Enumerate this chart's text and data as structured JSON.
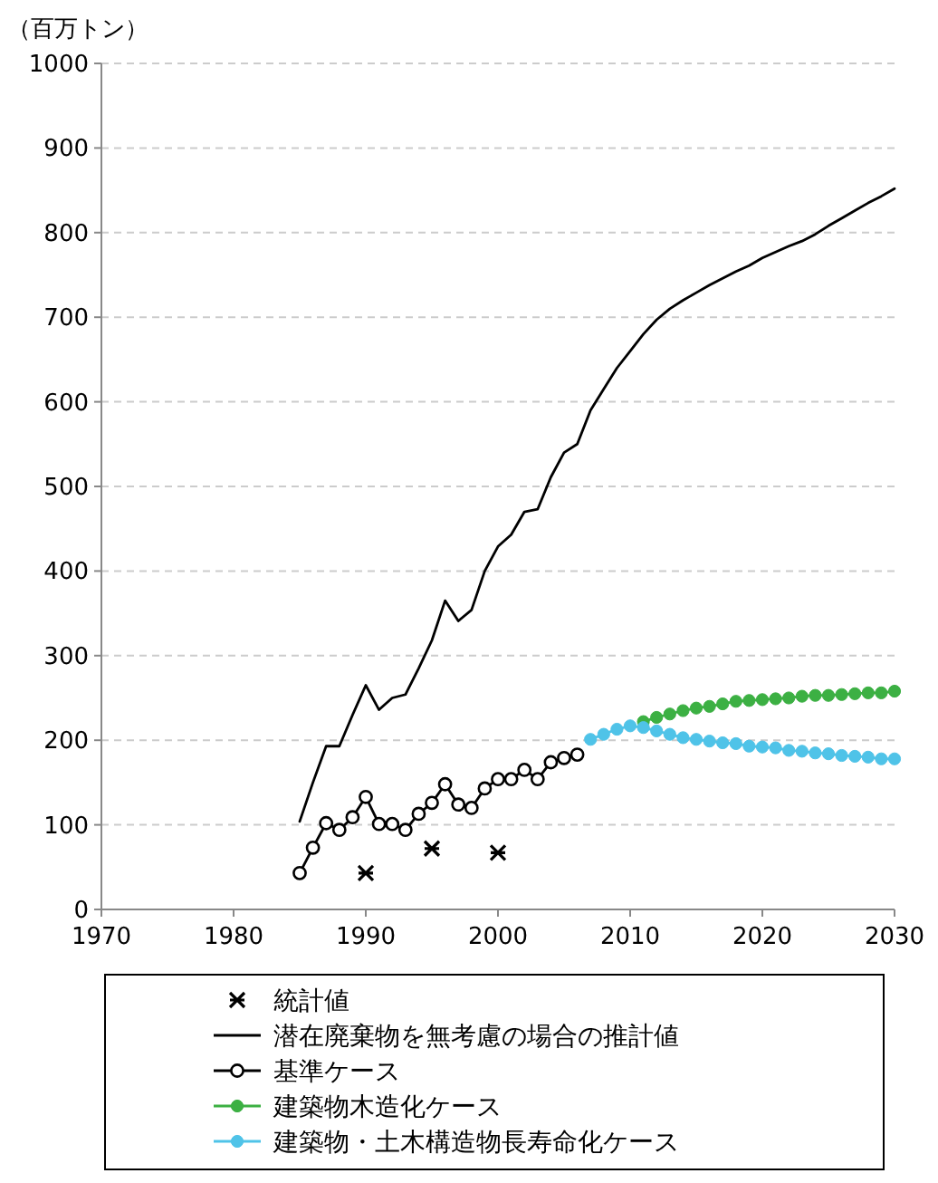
{
  "chart_data": {
    "type": "line",
    "ylabel": "（百万トン）",
    "xlim": [
      1970,
      2030
    ],
    "xticks": [
      1970,
      1980,
      1990,
      2000,
      2010,
      2020,
      2030
    ],
    "ylim": [
      0,
      1000
    ],
    "yticks": [
      0,
      100,
      200,
      300,
      400,
      500,
      600,
      700,
      800,
      900,
      1000
    ],
    "grid": "y",
    "legend": "bottom",
    "series": [
      {
        "name": "統計値",
        "type": "scatter",
        "marker": "cross",
        "color": "#000000",
        "x": [
          1990,
          1995,
          2000
        ],
        "values": [
          43,
          72,
          67
        ]
      },
      {
        "name": "潜在廃棄物を無考慮の場合の推計値",
        "marker": "none",
        "color": "#000000",
        "x": [
          1985,
          1986,
          1987,
          1988,
          1989,
          1990,
          1991,
          1992,
          1993,
          1994,
          1995,
          1996,
          1997,
          1998,
          1999,
          2000,
          2001,
          2002,
          2003,
          2004,
          2005,
          2006,
          2007,
          2008,
          2009,
          2010,
          2011,
          2012,
          2013,
          2014,
          2015,
          2016,
          2017,
          2018,
          2019,
          2020,
          2021,
          2022,
          2023,
          2024,
          2025,
          2026,
          2027,
          2028,
          2029,
          2030
        ],
        "values": [
          104,
          150,
          193,
          193,
          230,
          265,
          236,
          250,
          254,
          285,
          318,
          365,
          341,
          354,
          400,
          429,
          443,
          470,
          473,
          511,
          540,
          550,
          590,
          615,
          640,
          660,
          680,
          697,
          710,
          720,
          729,
          738,
          746,
          754,
          761,
          770,
          777,
          784,
          790,
          798,
          808,
          817,
          826,
          835,
          843,
          852
        ]
      },
      {
        "name": "基準ケース",
        "marker": "circle",
        "color": "#000000",
        "x": [
          1985,
          1986,
          1987,
          1988,
          1989,
          1990,
          1991,
          1992,
          1993,
          1994,
          1995,
          1996,
          1997,
          1998,
          1999,
          2000,
          2001,
          2002,
          2003,
          2004,
          2005,
          2006
        ],
        "values": [
          43,
          73,
          102,
          94,
          109,
          133,
          101,
          101,
          94,
          113,
          126,
          148,
          124,
          120,
          143,
          154,
          154,
          165,
          154,
          174,
          179,
          183
        ]
      },
      {
        "name": "建築物木造化ケース",
        "marker": "circle",
        "color": "#3cb043",
        "x": [
          2011,
          2012,
          2013,
          2014,
          2015,
          2016,
          2017,
          2018,
          2019,
          2020,
          2021,
          2022,
          2023,
          2024,
          2025,
          2026,
          2027,
          2028,
          2029,
          2030
        ],
        "values": [
          222,
          227,
          231,
          235,
          238,
          240,
          243,
          246,
          247,
          248,
          249,
          250,
          252,
          253,
          253,
          254,
          255,
          256,
          256,
          258
        ]
      },
      {
        "name": "建築物・土木構造物長寿命化ケース",
        "marker": "circle",
        "color": "#4fc3e8",
        "x": [
          2007,
          2008,
          2009,
          2010,
          2011,
          2012,
          2013,
          2014,
          2015,
          2016,
          2017,
          2018,
          2019,
          2020,
          2021,
          2022,
          2023,
          2024,
          2025,
          2026,
          2027,
          2028,
          2029,
          2030
        ],
        "values": [
          201,
          207,
          213,
          217,
          215,
          211,
          207,
          203,
          201,
          199,
          197,
          196,
          193,
          192,
          191,
          188,
          187,
          185,
          184,
          182,
          181,
          180,
          178,
          178
        ]
      }
    ]
  }
}
